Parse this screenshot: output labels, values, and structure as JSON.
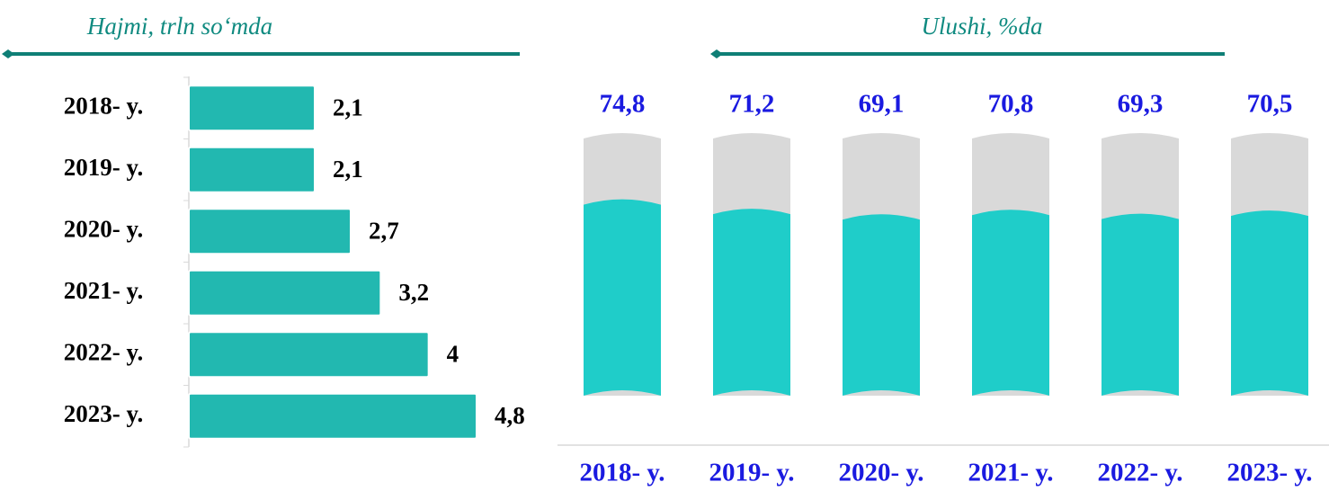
{
  "chart_data": [
    {
      "type": "barh",
      "title": "Hajmi, trln so‘mda",
      "categories": [
        "2018- y.",
        "2019- y.",
        "2020- y.",
        "2021- y.",
        "2022- y.",
        "2023- y."
      ],
      "values": [
        2.1,
        2.1,
        2.7,
        3.2,
        4,
        4.8
      ],
      "value_labels": [
        "2,1",
        "2,1",
        "2,7",
        "3,2",
        "4",
        "4,8"
      ],
      "color": "#22b8b0",
      "xlim": [
        0,
        6
      ]
    },
    {
      "type": "bar",
      "title": "Ulushi, %da",
      "categories": [
        "2018- y.",
        "2019- y.",
        "2020- y.",
        "2021- y.",
        "2022- y.",
        "2023- y."
      ],
      "values": [
        74.8,
        71.2,
        69.1,
        70.8,
        69.3,
        70.5
      ],
      "value_labels": [
        "74,8",
        "71,2",
        "69,1",
        "70,8",
        "69,3",
        "70,5"
      ],
      "color": "#1fcdc9",
      "ylim": [
        0,
        100
      ]
    }
  ]
}
